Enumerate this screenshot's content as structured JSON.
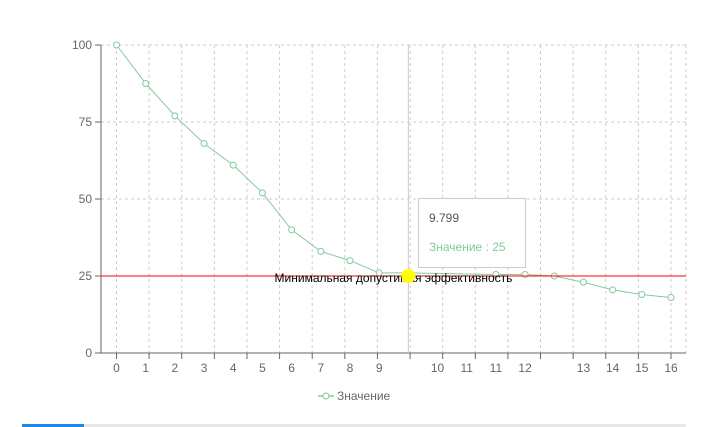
{
  "chart_data": {
    "type": "line",
    "title": "",
    "xlabel": "",
    "ylabel": "",
    "x_ticks": [
      "0",
      "1",
      "2",
      "3",
      "4",
      "5",
      "6",
      "7",
      "8",
      "9",
      "10",
      "11",
      "11",
      "12",
      "13",
      "14",
      "15",
      "16"
    ],
    "series": [
      {
        "name": "Значение",
        "color": "#82ca9d",
        "points": [
          [
            0,
            100
          ],
          [
            1,
            87.5
          ],
          [
            2,
            77
          ],
          [
            3,
            68
          ],
          [
            4,
            61
          ],
          [
            5,
            52
          ],
          [
            6,
            40
          ],
          [
            7,
            33
          ],
          [
            8,
            30
          ],
          [
            9,
            26
          ],
          [
            10,
            26
          ],
          [
            11,
            25.5
          ],
          [
            12,
            25.5
          ],
          [
            13,
            25
          ],
          [
            14,
            23
          ],
          [
            15,
            20.5
          ],
          [
            16,
            19
          ],
          [
            17,
            18
          ]
        ]
      }
    ],
    "ylim": [
      0,
      100
    ],
    "y_ticks": [
      0,
      25,
      50,
      75,
      100
    ],
    "grid": true,
    "reference_line": {
      "y": 25,
      "label": "Минимальная допустимая эффективность",
      "color": "#ff0000"
    },
    "cursor_x": 10,
    "legend_position": "bottom-center",
    "tooltip": {
      "label": "9.799",
      "series_name": "Значение",
      "separator": " : ",
      "value": "25"
    },
    "highlight_color": "#ffff00"
  },
  "legend": {
    "label": "Значение"
  },
  "tooltip_text": {
    "label": "9.799",
    "value_line": "Значение : 25"
  }
}
